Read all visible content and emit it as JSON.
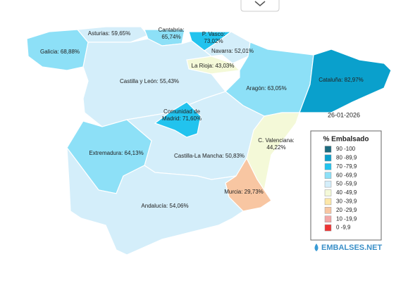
{
  "date": "26-01-2026",
  "logo": "EMBALSES.NET",
  "legend": {
    "title": "% Embalsado",
    "items": [
      {
        "label": "90 -100",
        "color": "#1d6b7e"
      },
      {
        "label": "80 -89,9",
        "color": "#0aa0cc"
      },
      {
        "label": "70 -79,9",
        "color": "#22c3ee"
      },
      {
        "label": "60 -69,9",
        "color": "#8de0f7"
      },
      {
        "label": "50 -59,9",
        "color": "#d4eefa"
      },
      {
        "label": "40 -49,9",
        "color": "#f4f9d8"
      },
      {
        "label": "30 -39,9",
        "color": "#fde7a8"
      },
      {
        "label": "20 -29,9",
        "color": "#f8c6a2"
      },
      {
        "label": "10 -19,9",
        "color": "#f3a6a6"
      },
      {
        "label": "0 -9,9",
        "color": "#ee3333"
      }
    ]
  },
  "regions": [
    {
      "lines": [
        "Galicia: 68,88%"
      ],
      "color": "#8de0f7"
    },
    {
      "lines": [
        "Asturias: 59,65%"
      ],
      "color": "#d4eefa"
    },
    {
      "lines": [
        "Cantabria:",
        "65,74%"
      ],
      "color": "#8de0f7"
    },
    {
      "lines": [
        "P. Vasco:",
        "73,02%"
      ],
      "color": "#22c3ee"
    },
    {
      "lines": [
        "Navarra: 52,01%"
      ],
      "color": "#d4eefa"
    },
    {
      "lines": [
        "La Rioja: 43,03%"
      ],
      "color": "#f4f9d8"
    },
    {
      "lines": [
        "Castilla y León: 55,43%"
      ],
      "color": "#d4eefa"
    },
    {
      "lines": [
        "Aragón: 63,05%"
      ],
      "color": "#8de0f7"
    },
    {
      "lines": [
        "Cataluña: 82,97%"
      ],
      "color": "#0aa0cc"
    },
    {
      "lines": [
        "Castilla-La Mancha: 50,83%"
      ],
      "color": "#d4eefa"
    },
    {
      "lines": [
        "Comunidad de",
        "Madrid: 71,60%"
      ],
      "color": "#22c3ee"
    },
    {
      "lines": [
        "Extremadura: 64,13%"
      ],
      "color": "#8de0f7"
    },
    {
      "lines": [
        "C. Valenciana:",
        "44,22%"
      ],
      "color": "#f4f9d8"
    },
    {
      "lines": [
        "Murcia: 29,73%"
      ],
      "color": "#f8c6a2"
    },
    {
      "lines": [
        "Andalucía: 54,06%"
      ],
      "color": "#d4eefa"
    }
  ]
}
